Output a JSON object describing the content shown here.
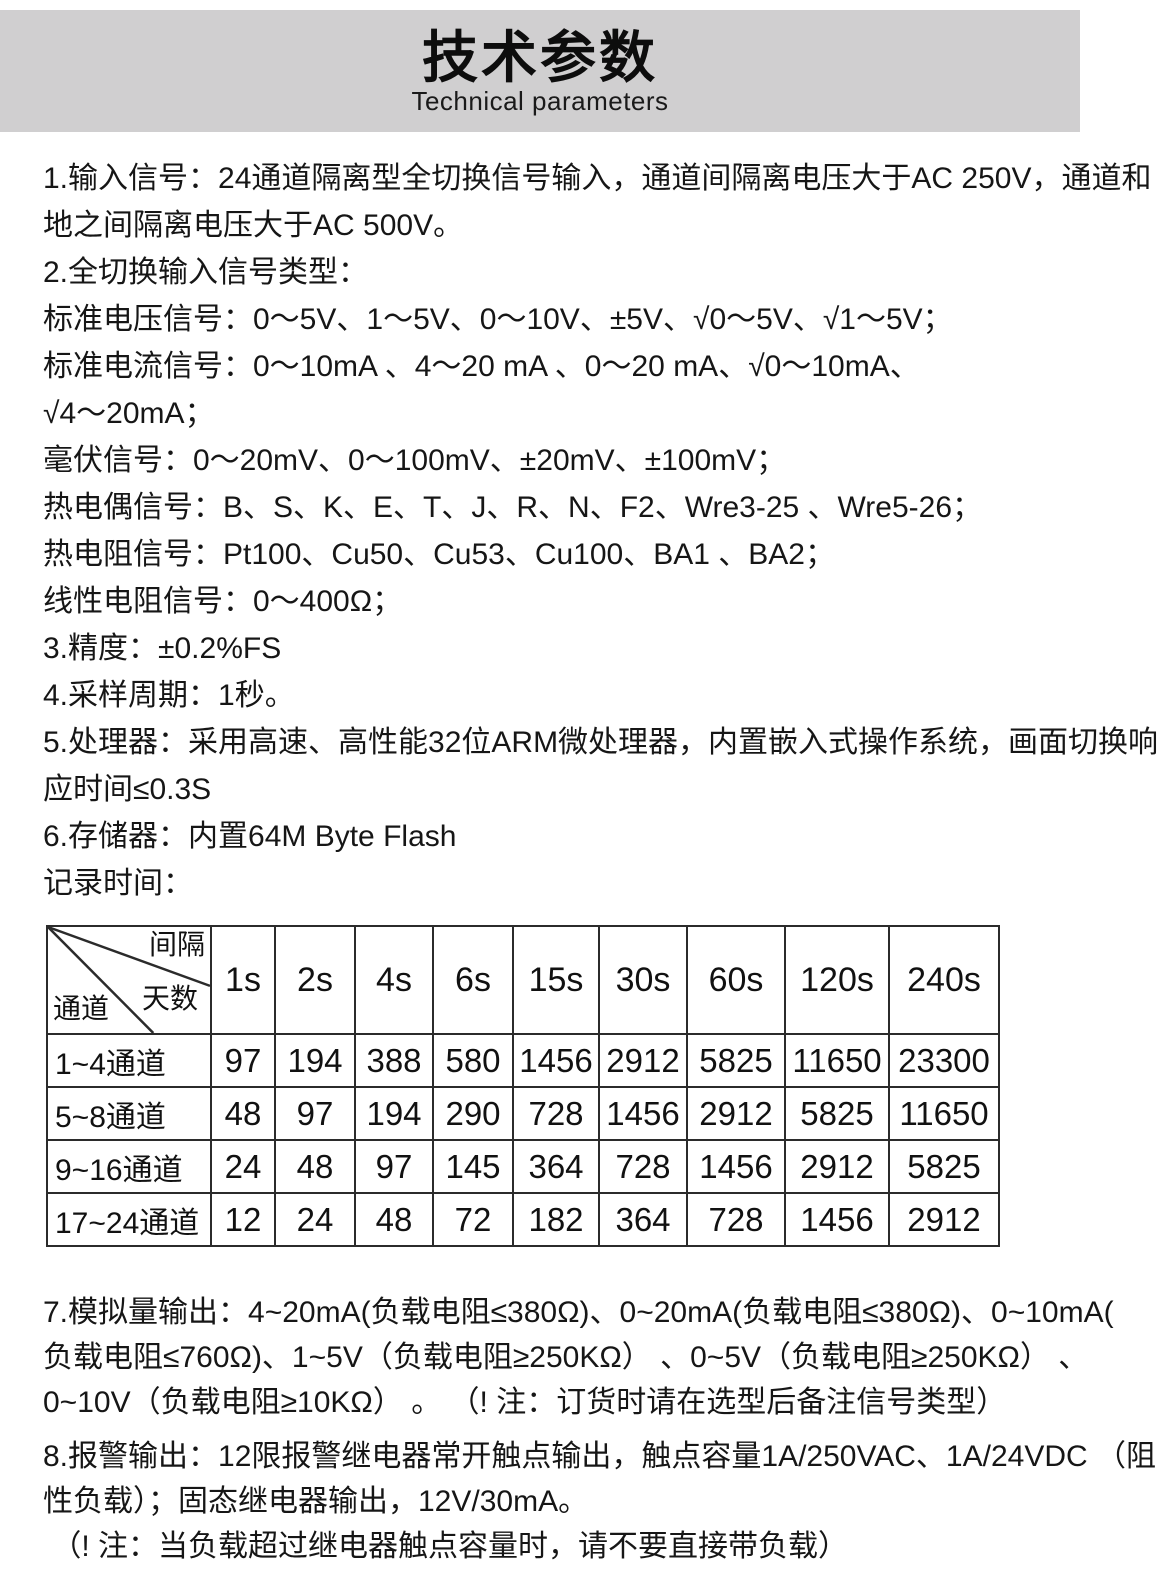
{
  "header": {
    "title": "技术参数",
    "subtitle": "Technical parameters"
  },
  "colors": {
    "header_band_bg": "#d0cfd0",
    "text": "#161616",
    "table_border": "#2b2b2b"
  },
  "specs_before_table": [
    "1.输入信号：24通道隔离型全切换信号输入，通道间隔离电压大于AC 250V，通道和",
    "地之间隔离电压大于AC 500V。",
    "2.全切换输入信号类型：",
    "标准电压信号：0～5V、1～5V、0～10V、±5V、√0～5V、√1～5V；",
    "标准电流信号：0～10mA 、4～20 mA 、0～20 mA、√0～10mA、",
    "√4～20mA；",
    "毫伏信号：0～20mV、0～100mV、±20mV、±100mV；",
    "热电偶信号：B、S、K、E、T、J、R、N、F2、Wre3-25 、Wre5-26；",
    "热电阻信号：Pt100、Cu50、Cu53、Cu100、BA1 、BA2；",
    "线性电阻信号：0～400Ω；",
    "3.精度：±0.2%FS",
    "4.采样周期：1秒。",
    "5.处理器：采用高速、高性能32位ARM微处理器，内置嵌入式操作系统，画面切换响",
    "应时间≤0.3S",
    "6.存储器：内置64M Byte Flash",
    "记录时间："
  ],
  "table": {
    "corner": {
      "interval_label": "间隔",
      "days_label": "天数",
      "channel_label": "通道"
    },
    "columns": [
      "1s",
      "2s",
      "4s",
      "6s",
      "15s",
      "30s",
      "60s",
      "120s",
      "240s"
    ],
    "rows": [
      {
        "label": "1~4通道",
        "values": [
          97,
          194,
          388,
          580,
          1456,
          2912,
          5825,
          11650,
          23300
        ]
      },
      {
        "label": "5~8通道",
        "values": [
          48,
          97,
          194,
          290,
          728,
          1456,
          2912,
          5825,
          11650
        ]
      },
      {
        "label": "9~16通道",
        "values": [
          24,
          48,
          97,
          145,
          364,
          728,
          1456,
          2912,
          5825
        ]
      },
      {
        "label": "17~24通道",
        "values": [
          12,
          24,
          48,
          72,
          182,
          364,
          728,
          1456,
          2912
        ]
      }
    ]
  },
  "specs_after_table": [
    "7.模拟量输出：4~20mA(负载电阻≤380Ω)、0~20mA(负载电阻≤380Ω)、0~10mA(",
    "负载电阻≤760Ω)、1~5V（负载电阻≥250KΩ） 、0~5V（负载电阻≥250KΩ） 、",
    "0~10V（负载电阻≥10KΩ） 。 （! 注：订货时请在选型后备注信号类型）",
    "8.报警输出：12限报警继电器常开触点输出，触点容量1A/250VAC、1A/24VDC （阻",
    "性负载）；固态继电器输出，12V/30mA。",
    " （! 注：当负载超过继电器触点容量时，请不要直接带负载）"
  ]
}
